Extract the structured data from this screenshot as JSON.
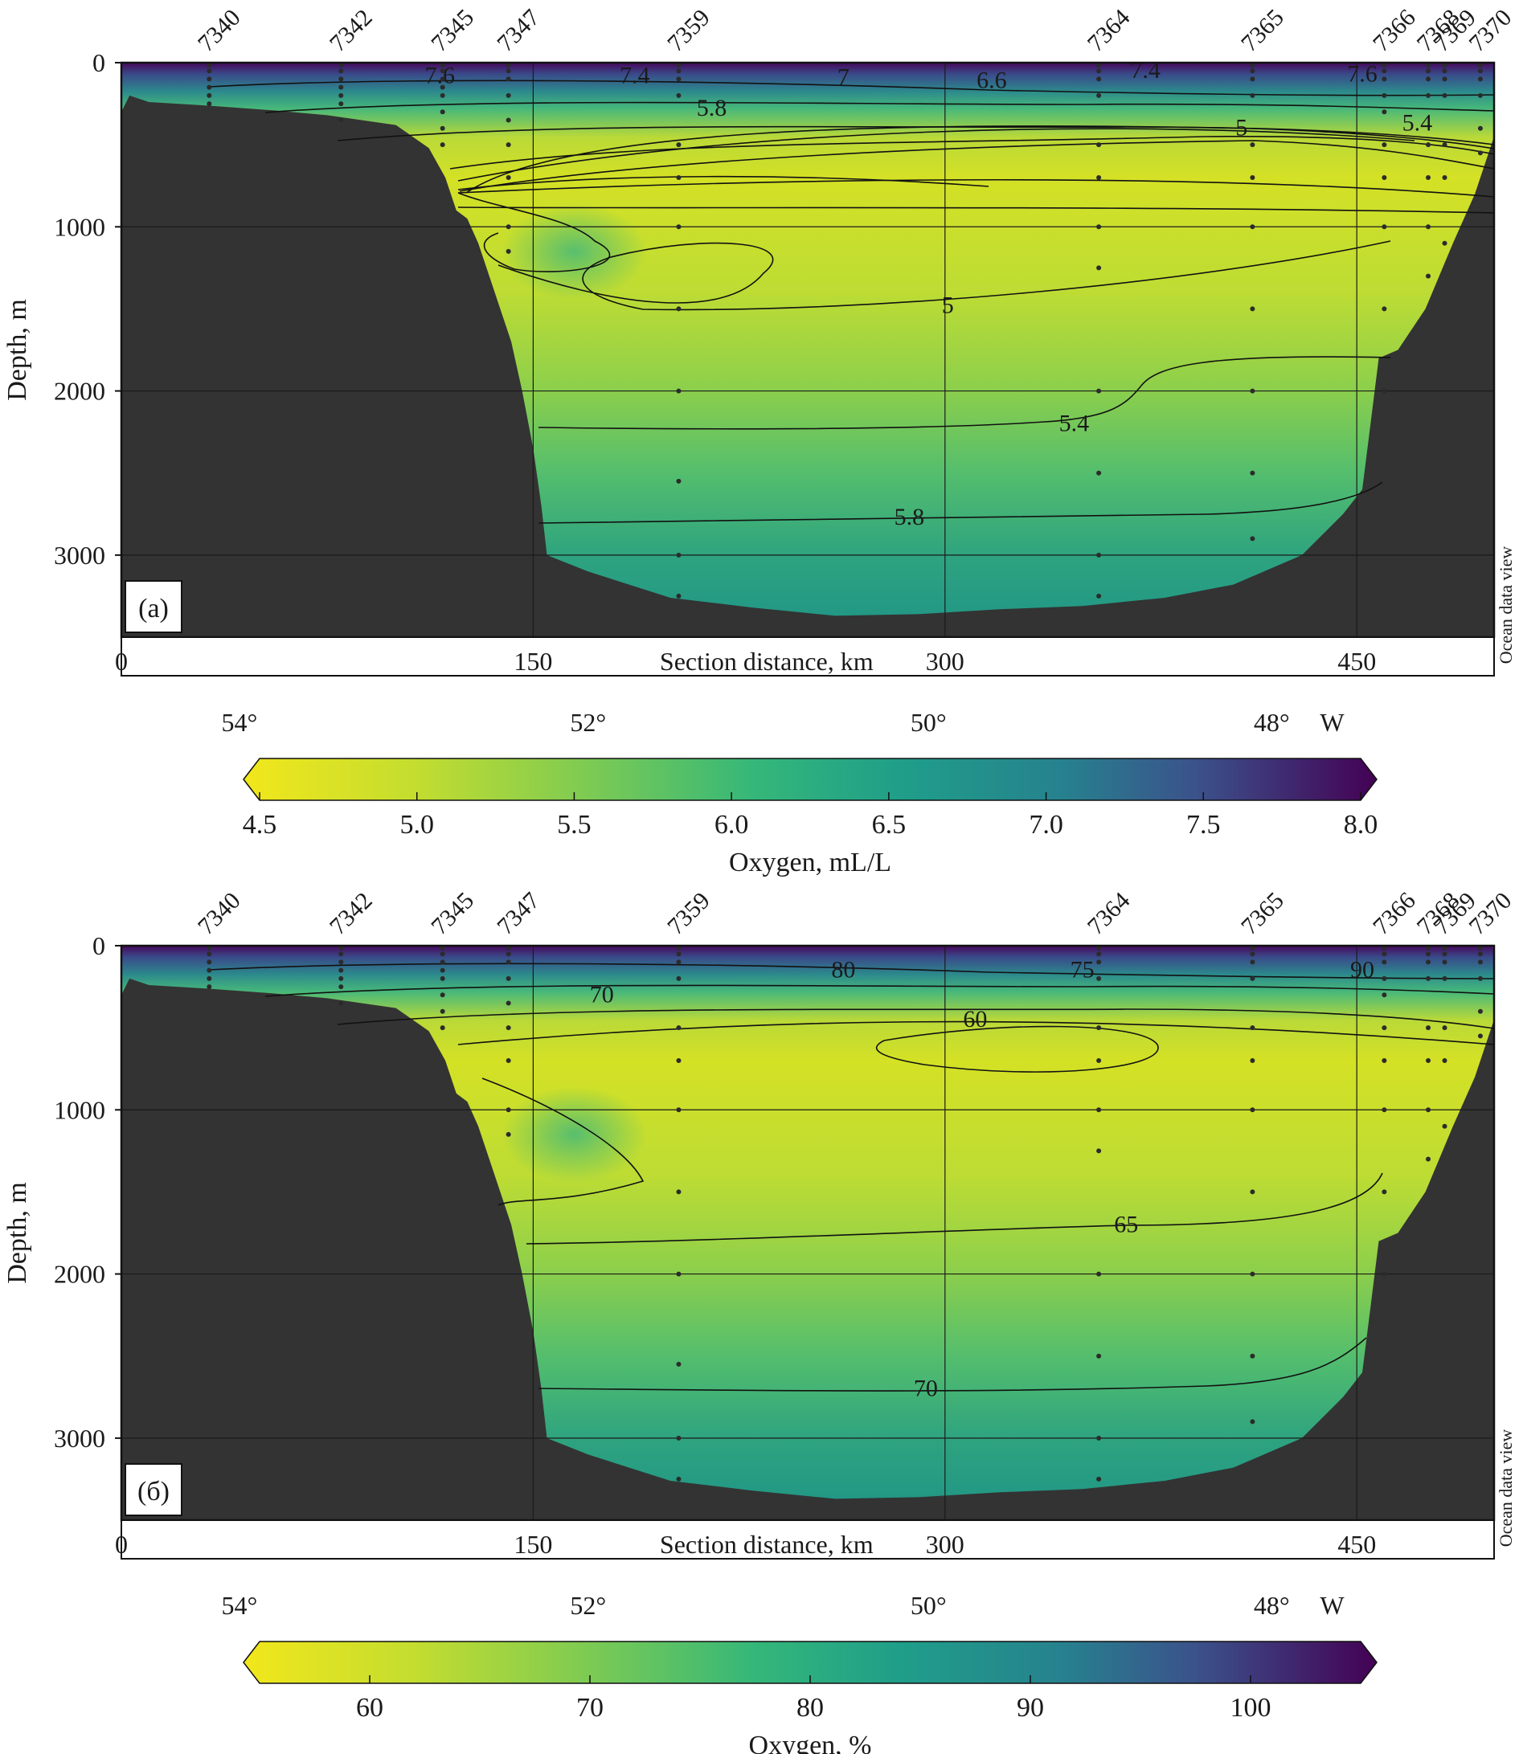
{
  "panels": [
    {
      "panel_label": "(a)",
      "ylabel": "Depth, m",
      "xlabel": "Section distance, km",
      "watermark": "Ocean data view",
      "colorbar_label": "Oxygen, mL/L",
      "colors": {
        "low": "#f2e71b",
        "mid": "#21918c",
        "high": "#440154",
        "bathymetry": "#333333"
      }
    },
    {
      "panel_label": "(б)",
      "ylabel": "Depth, m",
      "xlabel": "Section distance, km",
      "watermark": "Ocean data view",
      "colorbar_label": "Oxygen, %",
      "colors": {
        "low": "#f2e71b",
        "mid": "#21918c",
        "high": "#440154",
        "bathymetry": "#333333"
      }
    }
  ],
  "chart_data": [
    {
      "type": "heatmap",
      "variable": "Oxygen, mL/L",
      "xlabel": "Section distance, km",
      "ylabel": "Depth, m",
      "xlim": [
        0,
        500
      ],
      "ylim": [
        3500,
        0
      ],
      "x_ticks": [
        "0",
        "150",
        "300",
        "450"
      ],
      "y_ticks": [
        "0",
        "1000",
        "2000",
        "3000"
      ],
      "longitude_ticks": [
        "54°",
        "52°",
        "50°",
        "48°"
      ],
      "longitude_unit": "W",
      "stations": [
        {
          "id": "7340",
          "x_km": 32,
          "sample_depths": [
            0,
            50,
            100,
            150,
            200,
            250
          ]
        },
        {
          "id": "7342",
          "x_km": 80,
          "sample_depths": [
            0,
            50,
            100,
            150,
            200,
            250,
            350
          ]
        },
        {
          "id": "7345",
          "x_km": 117,
          "sample_depths": [
            0,
            50,
            100,
            150,
            200,
            300,
            400,
            500
          ]
        },
        {
          "id": "7347",
          "x_km": 141,
          "sample_depths": [
            0,
            50,
            100,
            200,
            350,
            500,
            700,
            1000,
            1150
          ]
        },
        {
          "id": "7359",
          "x_km": 203,
          "sample_depths": [
            0,
            50,
            100,
            200,
            500,
            700,
            1000,
            1500,
            2000,
            2550,
            3000,
            3250
          ]
        },
        {
          "id": "7364",
          "x_km": 356,
          "sample_depths": [
            0,
            50,
            100,
            200,
            500,
            700,
            1000,
            1250,
            2000,
            2500,
            3000,
            3250
          ]
        },
        {
          "id": "7365",
          "x_km": 412,
          "sample_depths": [
            0,
            50,
            100,
            200,
            500,
            700,
            1000,
            1500,
            2000,
            2500,
            2900
          ]
        },
        {
          "id": "7366",
          "x_km": 460,
          "sample_depths": [
            0,
            50,
            100,
            200,
            300,
            500,
            700,
            1000,
            1500,
            2000
          ]
        },
        {
          "id": "7368",
          "x_km": 476,
          "sample_depths": [
            0,
            50,
            100,
            200,
            500,
            700,
            1000,
            1300
          ]
        },
        {
          "id": "7369",
          "x_km": 482,
          "sample_depths": [
            0,
            50,
            100,
            200,
            500,
            700,
            1100
          ]
        },
        {
          "id": "7370",
          "x_km": 495,
          "sample_depths": [
            0,
            50,
            100,
            200,
            400,
            550
          ]
        }
      ],
      "colorbar": {
        "min": 4.5,
        "max": 8.0,
        "ticks": [
          "4.5",
          "5.0",
          "5.5",
          "6.0",
          "6.5",
          "7.0",
          "7.5",
          "8.0"
        ]
      },
      "contour_labels": [
        {
          "text": "7.6",
          "x_km": 116,
          "depth": 80
        },
        {
          "text": "7.4",
          "x_km": 187,
          "depth": 80
        },
        {
          "text": "7",
          "x_km": 263,
          "depth": 90
        },
        {
          "text": "6.6",
          "x_km": 317,
          "depth": 110
        },
        {
          "text": "7.4",
          "x_km": 373,
          "depth": 50
        },
        {
          "text": "7.6",
          "x_km": 452,
          "depth": 70
        },
        {
          "text": "5.8",
          "x_km": 215,
          "depth": 280
        },
        {
          "text": "5",
          "x_km": 408,
          "depth": 400
        },
        {
          "text": "5.4",
          "x_km": 472,
          "depth": 370
        },
        {
          "text": "5",
          "x_km": 301,
          "depth": 1480
        },
        {
          "text": "5.4",
          "x_km": 347,
          "depth": 2200
        },
        {
          "text": "5.8",
          "x_km": 287,
          "depth": 2770
        }
      ]
    },
    {
      "type": "heatmap",
      "variable": "Oxygen, %",
      "xlabel": "Section distance, km",
      "ylabel": "Depth, m",
      "xlim": [
        0,
        500
      ],
      "ylim": [
        3500,
        0
      ],
      "x_ticks": [
        "0",
        "150",
        "300",
        "450"
      ],
      "y_ticks": [
        "0",
        "1000",
        "2000",
        "3000"
      ],
      "longitude_ticks": [
        "54°",
        "52°",
        "50°",
        "48°"
      ],
      "longitude_unit": "W",
      "stations": [
        {
          "id": "7340",
          "x_km": 32,
          "sample_depths": [
            0,
            50,
            100,
            150,
            200,
            250
          ]
        },
        {
          "id": "7342",
          "x_km": 80,
          "sample_depths": [
            0,
            50,
            100,
            150,
            200,
            250,
            350
          ]
        },
        {
          "id": "7345",
          "x_km": 117,
          "sample_depths": [
            0,
            50,
            100,
            150,
            200,
            300,
            400,
            500
          ]
        },
        {
          "id": "7347",
          "x_km": 141,
          "sample_depths": [
            0,
            50,
            100,
            200,
            350,
            500,
            700,
            1000,
            1150
          ]
        },
        {
          "id": "7359",
          "x_km": 203,
          "sample_depths": [
            0,
            50,
            100,
            200,
            500,
            700,
            1000,
            1500,
            2000,
            2550,
            3000,
            3250
          ]
        },
        {
          "id": "7364",
          "x_km": 356,
          "sample_depths": [
            0,
            50,
            100,
            200,
            500,
            700,
            1000,
            1250,
            2000,
            2500,
            3000,
            3250
          ]
        },
        {
          "id": "7365",
          "x_km": 412,
          "sample_depths": [
            0,
            50,
            100,
            200,
            500,
            700,
            1000,
            1500,
            2000,
            2500,
            2900
          ]
        },
        {
          "id": "7366",
          "x_km": 460,
          "sample_depths": [
            0,
            50,
            100,
            200,
            300,
            500,
            700,
            1000,
            1500,
            2000
          ]
        },
        {
          "id": "7368",
          "x_km": 476,
          "sample_depths": [
            0,
            50,
            100,
            200,
            500,
            700,
            1000,
            1300
          ]
        },
        {
          "id": "7369",
          "x_km": 482,
          "sample_depths": [
            0,
            50,
            100,
            200,
            500,
            700,
            1100
          ]
        },
        {
          "id": "7370",
          "x_km": 495,
          "sample_depths": [
            0,
            50,
            100,
            200,
            400,
            550
          ]
        }
      ],
      "colorbar": {
        "min": 55,
        "max": 105,
        "ticks": [
          "60",
          "70",
          "80",
          "90",
          "100"
        ]
      },
      "contour_labels": [
        {
          "text": "80",
          "x_km": 263,
          "depth": 150
        },
        {
          "text": "75",
          "x_km": 350,
          "depth": 150
        },
        {
          "text": "90",
          "x_km": 452,
          "depth": 150
        },
        {
          "text": "70",
          "x_km": 175,
          "depth": 300
        },
        {
          "text": "60",
          "x_km": 311,
          "depth": 450
        },
        {
          "text": "65",
          "x_km": 366,
          "depth": 1700
        },
        {
          "text": "70",
          "x_km": 293,
          "depth": 2700
        }
      ]
    }
  ]
}
